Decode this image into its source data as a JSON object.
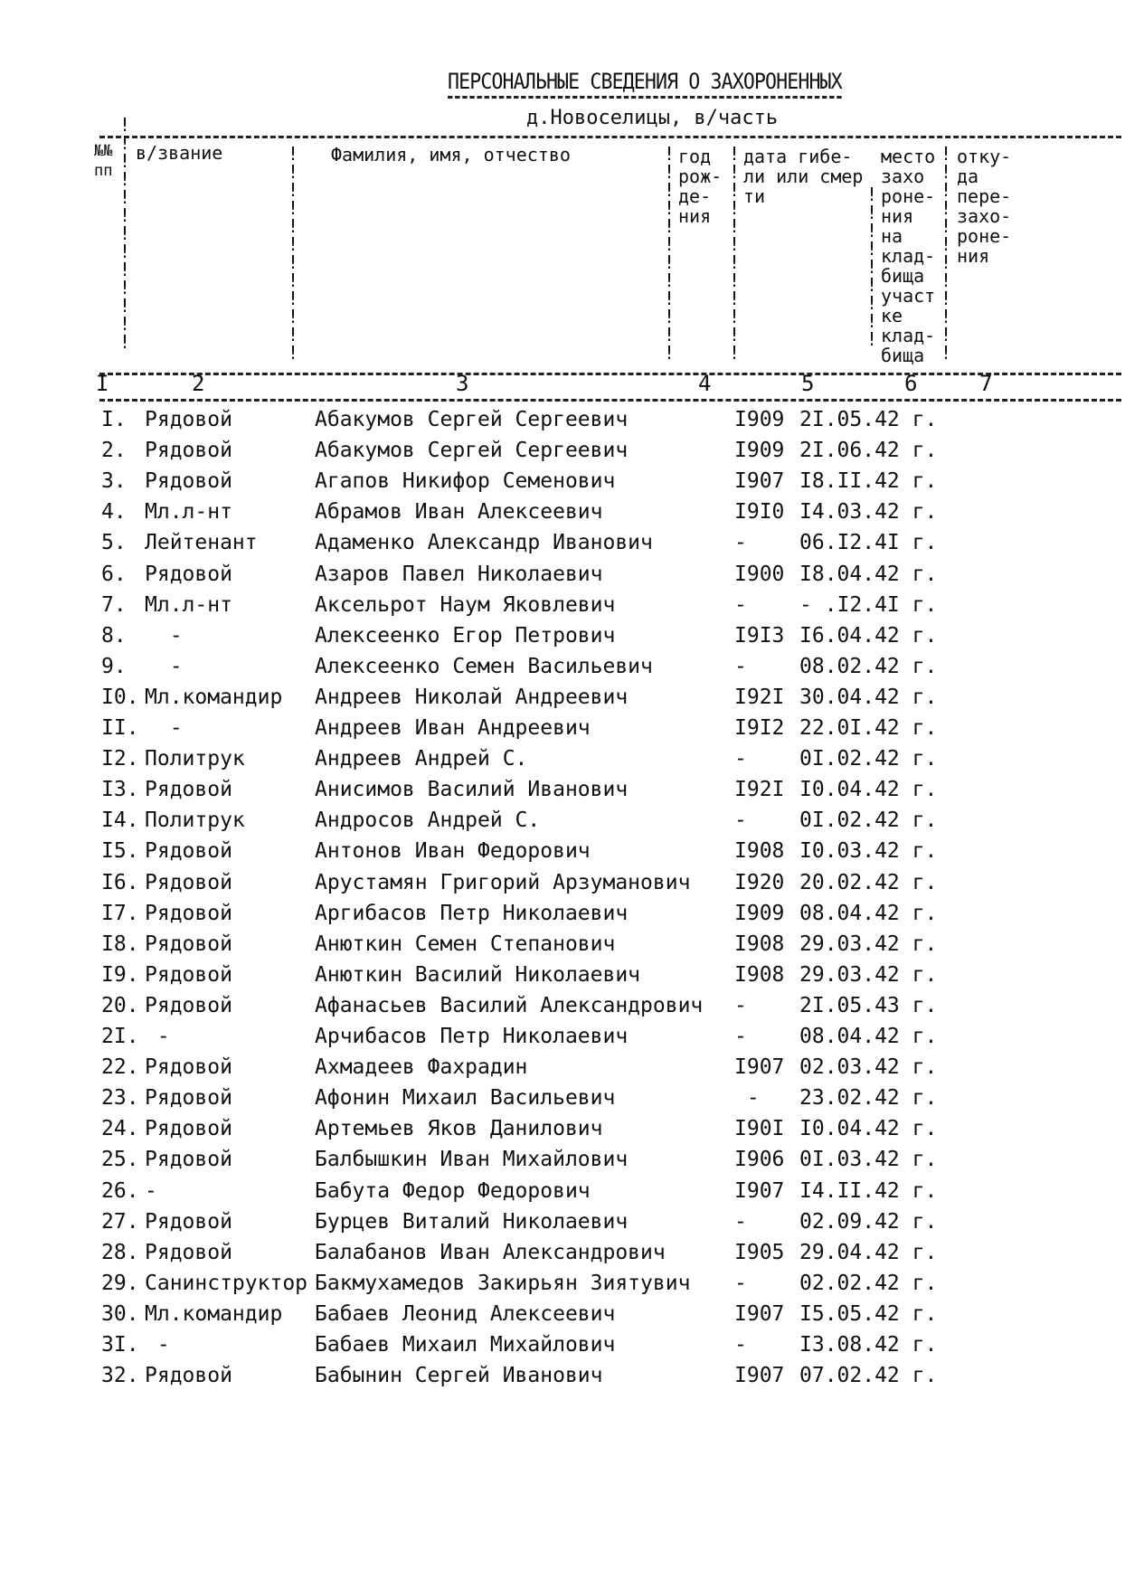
{
  "document": {
    "title": "ПЕРСОНАЛЬНЫЕ СВЕДЕНИЯ О ЗАХОРОНЕННЫХ",
    "subtitle": "д.Новоселицы, в/часть"
  },
  "table": {
    "headers": {
      "no": "№№\nпп",
      "rank": "в/звание",
      "name": "Фамилия, имя, отчество",
      "year": "год\nрож-\nде-\nния",
      "date": "дата гибе-\nли или смер\nти",
      "place": "место\nзахо\nроне-\nния\nна\nклад-\nбища\nучаст\nке\nклад-\nбища",
      "from": "отку-\nда\nпере-\nзахо-\nроне-\nния"
    },
    "column_numbers": [
      "I",
      "2",
      "3",
      "4",
      "5",
      "6",
      "7"
    ],
    "rows": [
      {
        "no": "I.",
        "rank": "Рядовой",
        "name": "Абакумов Сергей Сергеевич",
        "year": "I909",
        "date": "2I.05.42 г."
      },
      {
        "no": "2.",
        "rank": "Рядовой",
        "name": "Абакумов Сергей Сергеевич",
        "year": "I909",
        "date": "2I.06.42 г."
      },
      {
        "no": "3.",
        "rank": "Рядовой",
        "name": "Агапов Никифор Семенович",
        "year": "I907",
        "date": "I8.II.42 г."
      },
      {
        "no": "4.",
        "rank": "Мл.л-нт",
        "name": "Абрамов Иван Алексеевич",
        "year": "I9I0",
        "date": "I4.03.42 г."
      },
      {
        "no": "5.",
        "rank": "Лейтенант",
        "name": "Адаменко Александр Иванович",
        "year": "-",
        "date": "06.I2.4I г."
      },
      {
        "no": "6.",
        "rank": "Рядовой",
        "name": "Азаров Павел Николаевич",
        "year": "I900",
        "date": "I8.04.42 г."
      },
      {
        "no": "7.",
        "rank": "Мл.л-нт",
        "name": "Аксельрот Наум Яковлевич",
        "year": "-",
        "date": "- .I2.4I г."
      },
      {
        "no": "8.",
        "rank": "  -",
        "name": "Алексеенко Егор Петрович",
        "year": "I9I3",
        "date": "I6.04.42 г."
      },
      {
        "no": "9.",
        "rank": "  -",
        "name": "Алексеенко Семен Васильевич",
        "year": "-",
        "date": "08.02.42 г."
      },
      {
        "no": "I0.",
        "rank": "Мл.командир",
        "name": "Андреев Николай Андреевич",
        "year": "I92I",
        "date": "30.04.42 г."
      },
      {
        "no": "II.",
        "rank": "  -",
        "name": "Андреев Иван Андреевич",
        "year": "I9I2",
        "date": "22.0I.42 г."
      },
      {
        "no": "I2.",
        "rank": "Политрук",
        "name": "Андреев Андрей С.",
        "year": "-",
        "date": "0I.02.42 г."
      },
      {
        "no": "I3.",
        "rank": "Рядовой",
        "name": "Анисимов Василий Иванович",
        "year": "I92I",
        "date": "I0.04.42 г."
      },
      {
        "no": "I4.",
        "rank": "Политрук",
        "name": "Андросов Андрей С.",
        "year": "-",
        "date": "0I.02.42 г."
      },
      {
        "no": "I5.",
        "rank": "Рядовой",
        "name": "Антонов Иван Федорович",
        "year": "I908",
        "date": "I0.03.42 г."
      },
      {
        "no": "I6.",
        "rank": "Рядовой",
        "name": "Арустамян Григорий Арзуманович",
        "year": "I920",
        "date": "20.02.42 г."
      },
      {
        "no": "I7.",
        "rank": "Рядовой",
        "name": "Аргибасов Петр Николаевич",
        "year": "I909",
        "date": "08.04.42 г."
      },
      {
        "no": "I8.",
        "rank": "Рядовой",
        "name": "Анюткин Семен Степанович",
        "year": "I908",
        "date": "29.03.42 г."
      },
      {
        "no": "I9.",
        "rank": "Рядовой",
        "name": "Анюткин Василий Николаевич",
        "year": "I908",
        "date": "29.03.42 г."
      },
      {
        "no": "20.",
        "rank": "Рядовой",
        "name": "Афанасьев Василий Александрович",
        "year": "-",
        "date": "2I.05.43 г."
      },
      {
        "no": "2I.",
        "rank": " -",
        "name": "Арчибасов Петр Николаевич",
        "year": "-",
        "date": "08.04.42 г."
      },
      {
        "no": "22.",
        "rank": "Рядовой",
        "name": "Ахмадеев Фахрадин",
        "year": "I907",
        "date": "02.03.42 г."
      },
      {
        "no": "23.",
        "rank": "Рядовой",
        "name": "Афонин Михаил Васильевич",
        "year": " -",
        "date": "23.02.42 г."
      },
      {
        "no": "24.",
        "rank": "Рядовой",
        "name": "Артемьев Яков Данилович",
        "year": "I90I",
        "date": "I0.04.42 г."
      },
      {
        "no": "25.",
        "rank": "Рядовой",
        "name": "Балбышкин Иван Михайлович",
        "year": "I906",
        "date": "0I.03.42 г."
      },
      {
        "no": "26.",
        "rank": "-",
        "name": "Бабута Федор Федорович",
        "year": "I907",
        "date": "I4.II.42 г."
      },
      {
        "no": "27.",
        "rank": "Рядовой",
        "name": "Бурцев Виталий Николаевич",
        "year": "-",
        "date": "02.09.42 г."
      },
      {
        "no": "28.",
        "rank": "Рядовой",
        "name": "Балабанов Иван Александрович",
        "year": "I905",
        "date": "29.04.42 г."
      },
      {
        "no": "29.",
        "rank": "Санинструктор",
        "name": "Бакмухамедов Закирьян Зиятувич",
        "year": "-",
        "date": "02.02.42 г."
      },
      {
        "no": "30.",
        "rank": "Мл.командир",
        "name": "Бабаев Леонид Алексеевич",
        "year": "I907",
        "date": "I5.05.42 г."
      },
      {
        "no": "3I.",
        "rank": " -",
        "name": "Бабаев Михаил Михайлович",
        "year": "-",
        "date": "I3.08.42 г."
      },
      {
        "no": "32.",
        "rank": "Рядовой",
        "name": "Бабынин Сергей Иванович",
        "year": "I907",
        "date": "07.02.42 г."
      }
    ]
  }
}
